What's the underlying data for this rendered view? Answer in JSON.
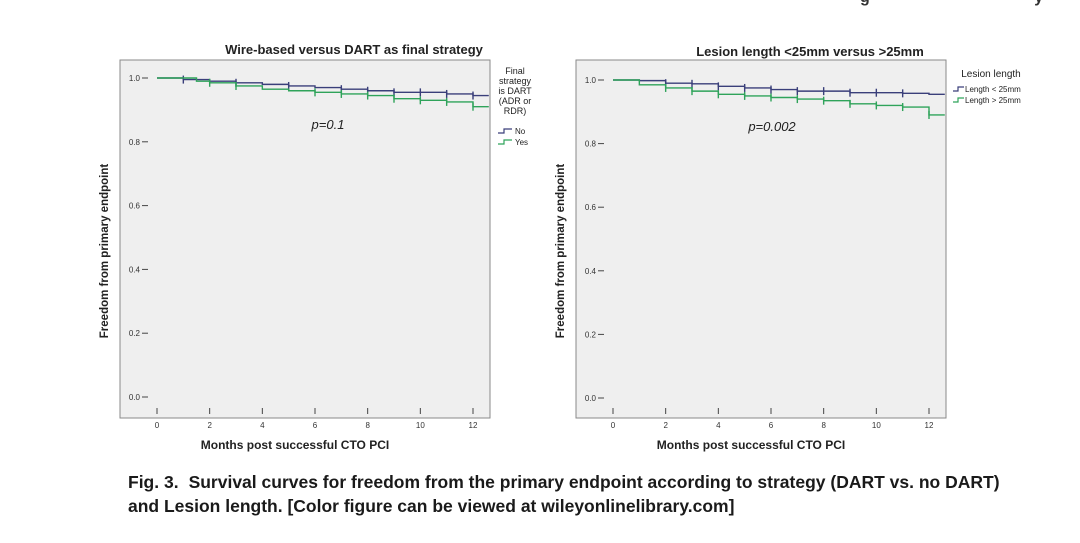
{
  "top_cutoff_text": "g                                     y",
  "caption": {
    "label": "Fig. 3.",
    "text": "Survival curves for freedom from the primary endpoint according to strategy (DART vs. no DART) and Lesion length. [Color figure can be viewed at wileyonlinelibrary.com]"
  },
  "colors": {
    "plot_bg": "#efefef",
    "series_no": "#3a3f7a",
    "series_yes": "#2fa35a"
  },
  "chart_data": [
    {
      "type": "line",
      "step": true,
      "title": "Wire-based versus DART as final strategy",
      "xlabel": "Months post successful CTO PCI",
      "ylabel": "Freedom from primary endpoint",
      "xlim": [
        0,
        12
      ],
      "ylim": [
        0,
        1.0
      ],
      "xticks": [
        "0",
        "2",
        "4",
        "6",
        "8",
        "10",
        "12"
      ],
      "yticks": [
        "0.0",
        "0.2",
        "0.4",
        "0.6",
        "0.8",
        "1.0"
      ],
      "annotation": "p=0.1",
      "legend_title": [
        "Final",
        "strategy",
        "is DART",
        "(ADR or",
        "RDR)"
      ],
      "legend_position": "right",
      "series": [
        {
          "name": "No",
          "color": "#3a3f7a",
          "x": [
            0,
            1.0,
            2.0,
            3.0,
            4.0,
            5.0,
            6.0,
            7.0,
            8.0,
            9.0,
            10.0,
            11.0,
            12.0,
            12.6
          ],
          "y": [
            1.0,
            0.995,
            0.99,
            0.985,
            0.98,
            0.975,
            0.97,
            0.965,
            0.96,
            0.955,
            0.955,
            0.95,
            0.945,
            0.945
          ],
          "censor_x": [
            1,
            3,
            5,
            7,
            8,
            9,
            10,
            11,
            12
          ]
        },
        {
          "name": "Yes",
          "color": "#2fa35a",
          "x": [
            0,
            1.5,
            2.0,
            3.0,
            4.0,
            5.0,
            6.0,
            7.0,
            8.0,
            9.0,
            10.0,
            11.0,
            12.0,
            12.6
          ],
          "y": [
            1.0,
            0.99,
            0.985,
            0.975,
            0.965,
            0.96,
            0.955,
            0.95,
            0.945,
            0.935,
            0.93,
            0.925,
            0.91,
            0.91
          ],
          "censor_x": [
            2,
            3,
            6,
            7,
            8,
            9,
            10,
            11,
            12
          ]
        }
      ]
    },
    {
      "type": "line",
      "step": true,
      "title": "Lesion length <25mm versus >25mm",
      "xlabel": "Months post successful CTO PCI",
      "ylabel": "Freedom from primary endpoint",
      "xlim": [
        0,
        12
      ],
      "ylim": [
        0,
        1.0
      ],
      "xticks": [
        "0",
        "2",
        "4",
        "6",
        "8",
        "10",
        "12"
      ],
      "yticks": [
        "0.0",
        "0.2",
        "0.4",
        "0.6",
        "0.8",
        "1.0"
      ],
      "annotation": "p=0.002",
      "legend_title": [
        "Lesion length"
      ],
      "legend_position": "right",
      "series": [
        {
          "name": "Length < 25mm",
          "color": "#3a3f7a",
          "x": [
            0,
            1.0,
            2.0,
            3.0,
            4.0,
            5.0,
            6.0,
            7.0,
            8.0,
            9.0,
            10.0,
            11.0,
            12.0,
            12.6
          ],
          "y": [
            1.0,
            0.998,
            0.99,
            0.988,
            0.98,
            0.975,
            0.97,
            0.965,
            0.965,
            0.96,
            0.96,
            0.958,
            0.955,
            0.955
          ],
          "censor_x": [
            2,
            3,
            4,
            5,
            6,
            7,
            8,
            9,
            10,
            11
          ]
        },
        {
          "name": "Length > 25mm",
          "color": "#2fa35a",
          "x": [
            0,
            1.0,
            2.0,
            3.0,
            4.0,
            5.0,
            6.0,
            7.0,
            8.0,
            9.0,
            10.0,
            11.0,
            12.0,
            12.6
          ],
          "y": [
            1.0,
            0.985,
            0.975,
            0.965,
            0.955,
            0.95,
            0.945,
            0.94,
            0.935,
            0.925,
            0.92,
            0.915,
            0.89,
            0.89
          ],
          "censor_x": [
            2,
            3,
            4,
            5,
            6,
            7,
            8,
            9,
            10,
            11,
            12
          ]
        }
      ]
    }
  ]
}
